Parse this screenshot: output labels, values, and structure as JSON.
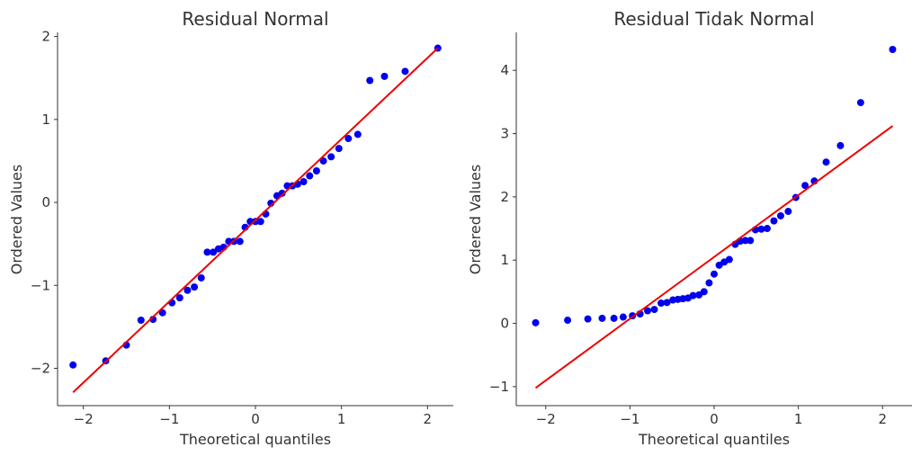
{
  "colors": {
    "points": "#0000ee",
    "fit_line": "#ee0000",
    "text": "#333333"
  },
  "chart_data": [
    {
      "type": "scatter",
      "title": "Residual Normal",
      "xlabel": "Theoretical quantiles",
      "ylabel": "Ordered Values",
      "xlim": [
        -2.3,
        2.3
      ],
      "ylim": [
        -2.45,
        2.05
      ],
      "xticks": [
        -2,
        -1,
        0,
        1,
        2
      ],
      "yticks": [
        -2,
        -1,
        0,
        1,
        2
      ],
      "tick_labels_x": [
        "−2",
        "−1",
        "0",
        "1",
        "2"
      ],
      "tick_labels_y": [
        "−2",
        "−1",
        "0",
        "1",
        "2"
      ],
      "grid": false,
      "x": [
        -2.12,
        -1.74,
        -1.5,
        -1.33,
        -1.19,
        -1.08,
        -0.97,
        -0.88,
        -0.79,
        -0.71,
        -0.63,
        -0.56,
        -0.49,
        -0.43,
        -0.37,
        -0.31,
        -0.25,
        -0.18,
        -0.12,
        -0.06,
        0.0,
        0.06,
        0.12,
        0.18,
        0.25,
        0.31,
        0.37,
        0.43,
        0.49,
        0.56,
        0.63,
        0.71,
        0.79,
        0.88,
        0.97,
        1.08,
        1.19,
        1.33,
        1.5,
        1.74,
        2.12
      ],
      "y": [
        -1.96,
        -1.91,
        -1.72,
        -1.42,
        -1.41,
        -1.33,
        -1.21,
        -1.15,
        -1.06,
        -1.02,
        -0.91,
        -0.6,
        -0.6,
        -0.56,
        -0.54,
        -0.47,
        -0.47,
        -0.47,
        -0.3,
        -0.23,
        -0.23,
        -0.23,
        -0.14,
        -0.01,
        0.08,
        0.11,
        0.2,
        0.2,
        0.22,
        0.25,
        0.32,
        0.38,
        0.5,
        0.55,
        0.65,
        0.77,
        0.82,
        1.47,
        1.52,
        1.58,
        1.86
      ],
      "fit_line": {
        "x": [
          -2.12,
          2.12
        ],
        "y": [
          -2.29,
          1.86
        ]
      }
    },
    {
      "type": "scatter",
      "title": "Residual Tidak Normal",
      "xlabel": "Theoretical quantiles",
      "ylabel": "Ordered Values",
      "xlim": [
        -2.35,
        2.35
      ],
      "ylim": [
        -1.3,
        4.6
      ],
      "xticks": [
        -2,
        -1,
        0,
        1,
        2
      ],
      "yticks": [
        -1,
        0,
        1,
        2,
        3,
        4
      ],
      "tick_labels_x": [
        "−2",
        "−1",
        "0",
        "1",
        "2"
      ],
      "tick_labels_y": [
        "−1",
        "0",
        "1",
        "2",
        "3",
        "4"
      ],
      "grid": false,
      "x": [
        -2.12,
        -1.74,
        -1.5,
        -1.33,
        -1.19,
        -1.08,
        -0.97,
        -0.88,
        -0.79,
        -0.71,
        -0.63,
        -0.56,
        -0.49,
        -0.43,
        -0.37,
        -0.31,
        -0.25,
        -0.18,
        -0.12,
        -0.06,
        0.0,
        0.06,
        0.12,
        0.18,
        0.25,
        0.31,
        0.37,
        0.43,
        0.49,
        0.56,
        0.63,
        0.71,
        0.79,
        0.88,
        0.97,
        1.08,
        1.19,
        1.33,
        1.5,
        1.74,
        2.12
      ],
      "y": [
        0.01,
        0.05,
        0.07,
        0.08,
        0.08,
        0.1,
        0.12,
        0.15,
        0.2,
        0.22,
        0.32,
        0.33,
        0.37,
        0.38,
        0.39,
        0.4,
        0.44,
        0.45,
        0.5,
        0.64,
        0.78,
        0.92,
        0.97,
        1.01,
        1.25,
        1.3,
        1.31,
        1.31,
        1.48,
        1.49,
        1.5,
        1.62,
        1.7,
        1.77,
        1.99,
        2.18,
        2.25,
        2.55,
        2.81,
        3.49,
        4.33
      ],
      "fit_line": {
        "x": [
          -2.12,
          2.12
        ],
        "y": [
          -1.02,
          3.12
        ]
      }
    }
  ]
}
